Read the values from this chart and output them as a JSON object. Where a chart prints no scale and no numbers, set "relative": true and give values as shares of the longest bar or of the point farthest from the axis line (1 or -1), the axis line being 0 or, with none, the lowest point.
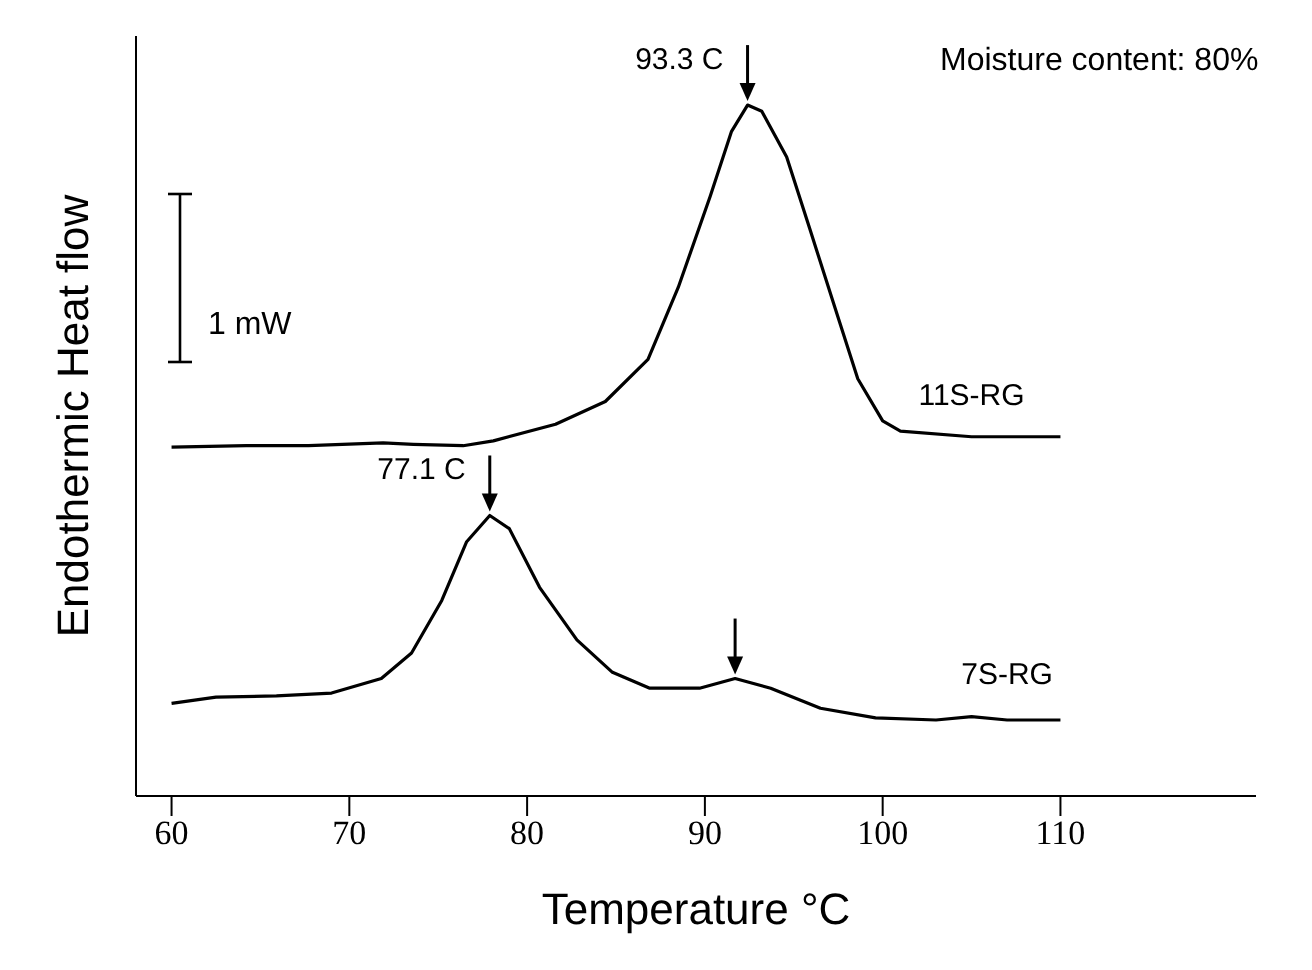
{
  "chart_data": {
    "type": "line",
    "xlabel": "Temperature °C",
    "ylabel": "Endothermic Heat flow",
    "relative": true,
    "tick_labels": "x",
    "xlim": [
      58,
      121
    ],
    "xticks": [
      60,
      70,
      80,
      90,
      100,
      110
    ],
    "series": [
      {
        "name": "11S-RG",
        "color": "#000000",
        "x": [
          60,
          64.2,
          67.7,
          71.9,
          73.6,
          76.4,
          78.1,
          81.6,
          84.4,
          86.8,
          88.5,
          90.3,
          91.5,
          92.4,
          93.2,
          94.6,
          95.9,
          97.3,
          98.6,
          100,
          101,
          105,
          110
        ],
        "values": [
          0.505,
          0.507,
          0.507,
          0.511,
          0.509,
          0.507,
          0.514,
          0.538,
          0.571,
          0.632,
          0.736,
          0.868,
          0.962,
          1.0,
          0.991,
          0.925,
          0.821,
          0.708,
          0.604,
          0.543,
          0.528,
          0.52,
          0.52
        ]
      },
      {
        "name": "7S-RG",
        "color": "#000000",
        "x": [
          60,
          62.5,
          65.9,
          69,
          71.8,
          73.5,
          75.2,
          76.6,
          77.9,
          79,
          80.7,
          82.8,
          84.8,
          86.9,
          89.7,
          91.7,
          93.7,
          96.5,
          99.6,
          103,
          105,
          107,
          110
        ],
        "values": [
          0.134,
          0.143,
          0.145,
          0.149,
          0.17,
          0.207,
          0.283,
          0.368,
          0.406,
          0.387,
          0.302,
          0.226,
          0.179,
          0.156,
          0.156,
          0.17,
          0.156,
          0.127,
          0.113,
          0.11,
          0.115,
          0.11,
          0.11
        ]
      }
    ],
    "annotations": [
      {
        "text": "93.3 C",
        "x": 92.4,
        "y": 1.0
      },
      {
        "text": "77.1 C",
        "x": 77.9,
        "y": 0.406
      },
      "Moisture content: 80%",
      "1 mW"
    ]
  }
}
